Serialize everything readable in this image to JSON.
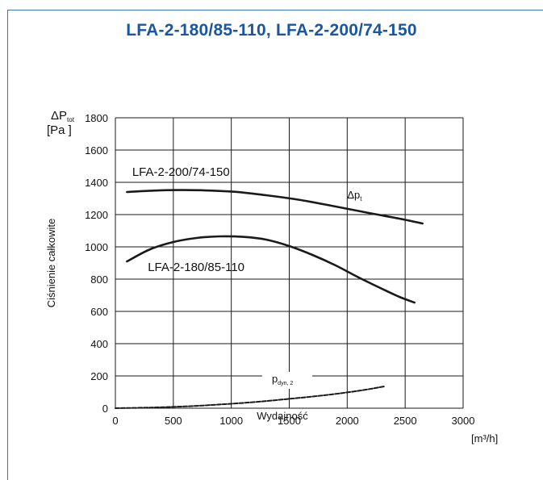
{
  "chart_data": {
    "type": "line",
    "title": "LFA-2-180/85-110, LFA-2-200/74-150",
    "xlabel": "Wydajność",
    "xunit": "[m³/h]",
    "ylabel": "Ciśnienie całkowite",
    "yunit_symbol": "ΔP",
    "yunit_sub": "tot",
    "yunit": "[Pa ]",
    "xlim": [
      0,
      3000
    ],
    "ylim": [
      0,
      1800
    ],
    "x_ticks": [
      "0",
      "500",
      "1000",
      "1500",
      "2000",
      "2500",
      "3000"
    ],
    "y_ticks": [
      "0",
      "200",
      "400",
      "600",
      "800",
      "1000",
      "1200",
      "1400",
      "1600",
      "1800"
    ],
    "grid": true,
    "series": [
      {
        "name": "LFA-2-200/74-150",
        "style": "solid",
        "color": "#1a1a1a",
        "points": [
          [
            100,
            1340
          ],
          [
            300,
            1348
          ],
          [
            600,
            1352
          ],
          [
            1000,
            1343
          ],
          [
            1300,
            1320
          ],
          [
            1600,
            1290
          ],
          [
            1900,
            1250
          ],
          [
            2200,
            1208
          ],
          [
            2450,
            1175
          ],
          [
            2650,
            1145
          ]
        ]
      },
      {
        "name": "LFA-2-180/85-110",
        "style": "solid",
        "color": "#1a1a1a",
        "points": [
          [
            100,
            910
          ],
          [
            300,
            985
          ],
          [
            500,
            1030
          ],
          [
            700,
            1055
          ],
          [
            900,
            1065
          ],
          [
            1100,
            1062
          ],
          [
            1300,
            1045
          ],
          [
            1500,
            1005
          ],
          [
            1700,
            950
          ],
          [
            1900,
            885
          ],
          [
            2100,
            810
          ],
          [
            2300,
            740
          ],
          [
            2450,
            690
          ],
          [
            2580,
            655
          ]
        ]
      },
      {
        "name": "p_dyn, 2",
        "style": "dashed",
        "color": "#1a1a1a",
        "points": [
          [
            0,
            0
          ],
          [
            300,
            4
          ],
          [
            600,
            11
          ],
          [
            900,
            23
          ],
          [
            1200,
            38
          ],
          [
            1500,
            58
          ],
          [
            1800,
            80
          ],
          [
            2100,
            108
          ],
          [
            2320,
            135
          ]
        ]
      }
    ],
    "annotations": [
      {
        "text": "LFA-2-200/74-150",
        "x": 145,
        "y": 1440
      },
      {
        "text": "LFA-2-180/85-110",
        "x": 280,
        "y": 850
      },
      {
        "text_main": "Δp",
        "text_sub": "t",
        "x": 2000,
        "y": 1300
      },
      {
        "text_main": "p",
        "text_sub": "dyn, 2",
        "x": 1350,
        "y": 160
      }
    ]
  }
}
